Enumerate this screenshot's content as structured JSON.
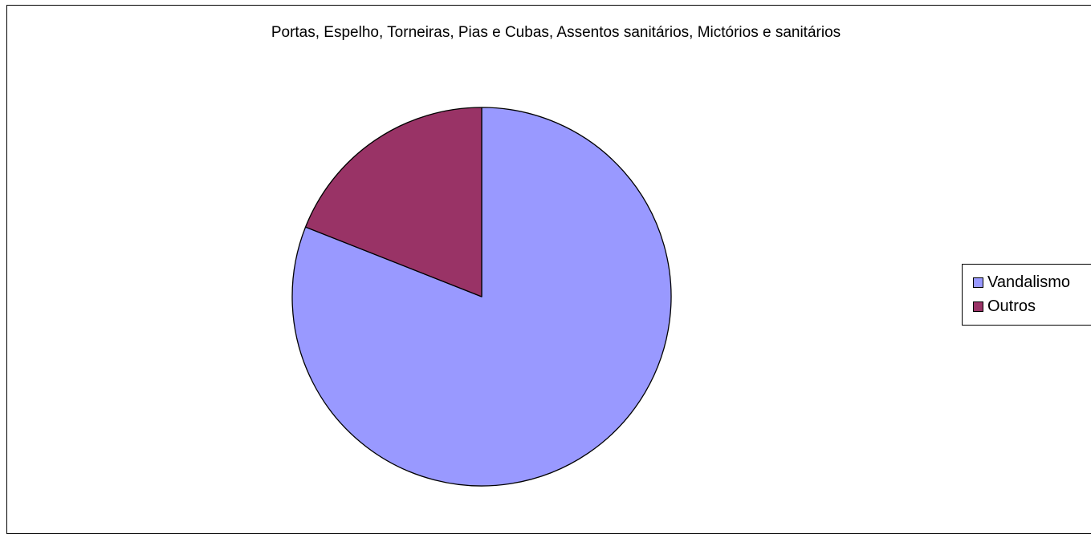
{
  "chart_data": {
    "type": "pie",
    "title": "Portas, Espelho, Torneiras,  Pias e Cubas, Assentos sanitários, Mictórios e sanitários",
    "slices": [
      {
        "label": "Vandalismo",
        "value": 81,
        "color": "#9999FF"
      },
      {
        "label": "Outros",
        "value": 19,
        "color": "#993366"
      }
    ],
    "legend_position": "right",
    "start_angle": "12-o'clock",
    "direction": "clockwise"
  }
}
